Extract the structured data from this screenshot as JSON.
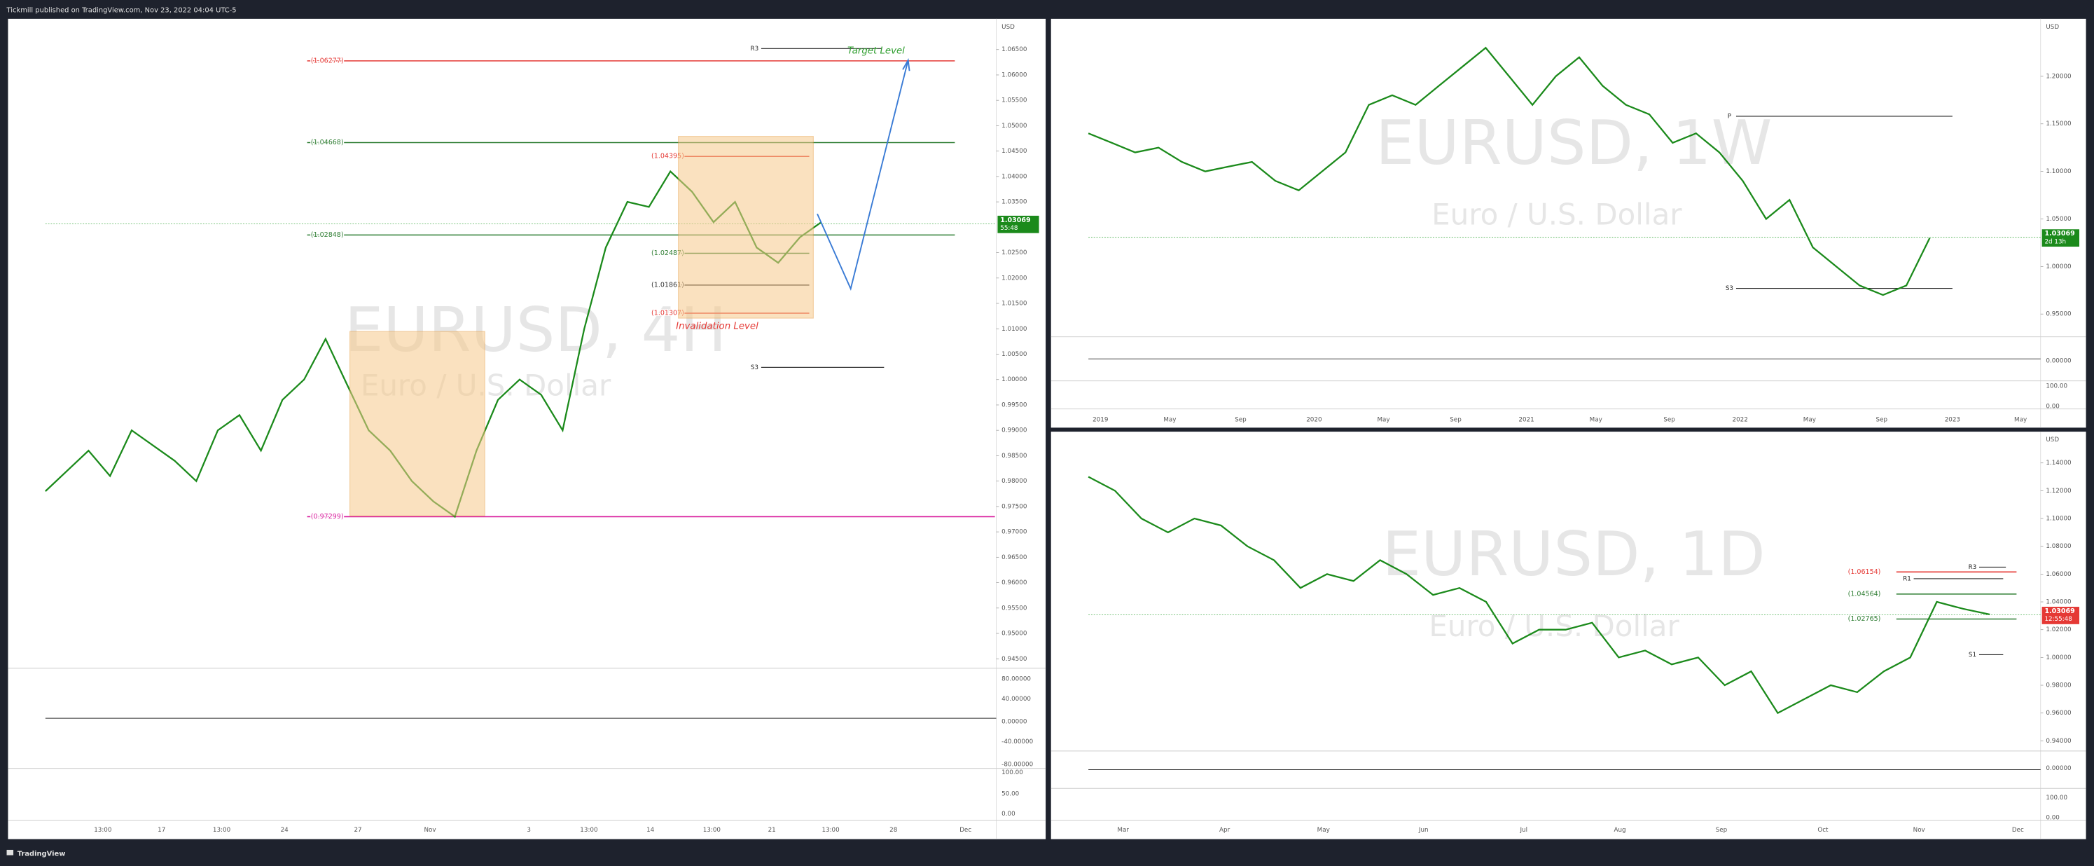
{
  "header": {
    "publisher": "Tickmill published on TradingView.com, Nov 23, 2022 04:04 UTC-5"
  },
  "footer": {
    "brand": "TradingView"
  },
  "panels": [
    {
      "type": "candlestick",
      "symbol": "EURUSD, 4H",
      "description": "Euro / U.S. Dollar",
      "unit": "USD",
      "ylim": [
        0.945,
        1.07
      ],
      "yticks": [
        {
          "value": 1.065,
          "label": "1.06500"
        },
        {
          "value": 1.06,
          "label": "1.06000"
        },
        {
          "value": 1.055,
          "label": "1.05500"
        },
        {
          "value": 1.05,
          "label": "1.05000"
        },
        {
          "value": 1.045,
          "label": "1.04500"
        },
        {
          "value": 1.04,
          "label": "1.04000"
        },
        {
          "value": 1.035,
          "label": "1.03500"
        },
        {
          "value": 1.025,
          "label": "1.02500"
        },
        {
          "value": 1.02,
          "label": "1.02000"
        },
        {
          "value": 1.015,
          "label": "1.01500"
        },
        {
          "value": 1.01,
          "label": "1.01000"
        },
        {
          "value": 1.005,
          "label": "1.00500"
        },
        {
          "value": 1.0,
          "label": "1.00000"
        },
        {
          "value": 0.995,
          "label": "0.99500"
        },
        {
          "value": 0.99,
          "label": "0.99000"
        },
        {
          "value": 0.985,
          "label": "0.98500"
        },
        {
          "value": 0.98,
          "label": "0.98000"
        },
        {
          "value": 0.975,
          "label": "0.97500"
        },
        {
          "value": 0.97,
          "label": "0.97000"
        },
        {
          "value": 0.965,
          "label": "0.96500"
        },
        {
          "value": 0.96,
          "label": "0.96000"
        },
        {
          "value": 0.955,
          "label": "0.95500"
        },
        {
          "value": 0.95,
          "label": "0.95000"
        },
        {
          "value": 0.945,
          "label": "0.94500"
        }
      ],
      "xticks": [
        "13:00",
        "17",
        "13:00",
        "24",
        "27",
        "Nov",
        "3",
        "13:00",
        "14",
        "13:00",
        "21",
        "13:00",
        "28",
        "Dec"
      ],
      "osc_labels": [
        "80.00000",
        "40.00000",
        "0.00000",
        "-40.00000",
        "-80.00000"
      ],
      "stoch_labels": [
        "100.00",
        "50.00",
        "0.00"
      ],
      "closes": [
        0.978,
        0.982,
        0.986,
        0.981,
        0.99,
        0.987,
        0.984,
        0.98,
        0.99,
        0.993,
        0.986,
        0.996,
        1.0,
        1.008,
        0.999,
        0.99,
        0.986,
        0.98,
        0.976,
        0.973,
        0.986,
        0.996,
        1.0,
        0.997,
        0.99,
        1.01,
        1.026,
        1.035,
        1.034,
        1.041,
        1.037,
        1.031,
        1.035,
        1.026,
        1.023,
        1.028,
        1.031
      ],
      "levels": [
        {
          "value": 1.06277,
          "label": "(1.06277)",
          "color": "#e53935"
        },
        {
          "value": 1.04668,
          "label": "(1.04668)",
          "color": "#2e7d32"
        },
        {
          "value": 1.02848,
          "label": "(1.02848)",
          "color": "#2e7d32"
        },
        {
          "value": 0.97299,
          "label": "(0.97299)",
          "color": "#d81b9c"
        },
        {
          "value": 1.04395,
          "label": "(1.04395)",
          "color": "#e53935"
        },
        {
          "value": 1.02487,
          "label": "(1.02487)",
          "color": "#2e7d32"
        },
        {
          "value": 1.01861,
          "label": "(1.01861)",
          "color": "#333333"
        },
        {
          "value": 1.01307,
          "label": "(1.01307)",
          "color": "#e53935"
        }
      ],
      "pivots": [
        {
          "label": "R3",
          "value": 1.0652
        },
        {
          "label": "S3",
          "value": 1.0024
        }
      ],
      "annotations": [
        "Target Level",
        "Invalidation Level"
      ],
      "price_tag": {
        "value": 1.03069,
        "label": "1.03069",
        "countdown": "55:48"
      }
    },
    {
      "type": "candlestick",
      "symbol": "EURUSD, 1W",
      "description": "Euro / U.S. Dollar",
      "unit": "USD",
      "ylim": [
        0.93,
        1.26
      ],
      "yticks": [
        {
          "value": 1.2,
          "label": "1.20000"
        },
        {
          "value": 1.15,
          "label": "1.15000"
        },
        {
          "value": 1.1,
          "label": "1.10000"
        },
        {
          "value": 1.05,
          "label": "1.05000"
        },
        {
          "value": 1.0,
          "label": "1.00000"
        },
        {
          "value": 0.95,
          "label": "0.95000"
        }
      ],
      "xticks": [
        "2019",
        "May",
        "Sep",
        "2020",
        "May",
        "Sep",
        "2021",
        "May",
        "Sep",
        "2022",
        "May",
        "Sep",
        "2023",
        "May"
      ],
      "osc_labels": [
        "0.00000"
      ],
      "stoch_labels": [
        "100.00",
        "0.00"
      ],
      "closes": [
        1.14,
        1.13,
        1.12,
        1.125,
        1.11,
        1.1,
        1.105,
        1.11,
        1.09,
        1.08,
        1.1,
        1.12,
        1.17,
        1.18,
        1.17,
        1.19,
        1.21,
        1.23,
        1.2,
        1.17,
        1.2,
        1.22,
        1.19,
        1.17,
        1.16,
        1.13,
        1.14,
        1.12,
        1.09,
        1.05,
        1.07,
        1.02,
        1.0,
        0.98,
        0.97,
        0.98,
        1.03
      ],
      "levels": [],
      "pivots": [
        {
          "label": "P",
          "value": 1.158
        },
        {
          "label": "S3",
          "value": 0.977
        }
      ],
      "annotations": [],
      "price_tag": {
        "value": 1.03069,
        "label": "1.03069",
        "countdown": "2d 13h"
      }
    },
    {
      "type": "candlestick",
      "symbol": "EURUSD, 1D",
      "description": "Euro / U.S. Dollar",
      "unit": "USD",
      "ylim": [
        0.935,
        1.155
      ],
      "yticks": [
        {
          "value": 1.14,
          "label": "1.14000"
        },
        {
          "value": 1.12,
          "label": "1.12000"
        },
        {
          "value": 1.1,
          "label": "1.10000"
        },
        {
          "value": 1.08,
          "label": "1.08000"
        },
        {
          "value": 1.06,
          "label": "1.06000"
        },
        {
          "value": 1.04,
          "label": "1.04000"
        },
        {
          "value": 1.02,
          "label": "1.02000"
        },
        {
          "value": 1.0,
          "label": "1.00000"
        },
        {
          "value": 0.98,
          "label": "0.98000"
        },
        {
          "value": 0.96,
          "label": "0.96000"
        },
        {
          "value": 0.94,
          "label": "0.94000"
        }
      ],
      "xticks": [
        "Mar",
        "Apr",
        "May",
        "Jun",
        "Jul",
        "Aug",
        "Sep",
        "Oct",
        "Nov",
        "Dec"
      ],
      "osc_labels": [
        "0.00000"
      ],
      "stoch_labels": [
        "100.00",
        "0.00"
      ],
      "closes": [
        1.13,
        1.12,
        1.1,
        1.09,
        1.1,
        1.095,
        1.08,
        1.07,
        1.05,
        1.06,
        1.055,
        1.07,
        1.06,
        1.045,
        1.05,
        1.04,
        1.01,
        1.02,
        1.02,
        1.025,
        1.0,
        1.005,
        0.995,
        1.0,
        0.98,
        0.99,
        0.96,
        0.97,
        0.98,
        0.975,
        0.99,
        1.0,
        1.04,
        1.035,
        1.031
      ],
      "levels": [
        {
          "value": 1.06154,
          "label": "(1.06154)",
          "color": "#e53935"
        },
        {
          "value": 1.04564,
          "label": "(1.04564)",
          "color": "#2e7d32"
        },
        {
          "value": 1.02765,
          "label": "(1.02765)",
          "color": "#2e7d32"
        }
      ],
      "pivots": [
        {
          "label": "R3",
          "value": 1.065
        },
        {
          "label": "R1",
          "value": 1.0567
        },
        {
          "label": "S1",
          "value": 1.002
        }
      ],
      "annotations": [],
      "price_tag": {
        "value": 1.03069,
        "label": "1.03069",
        "countdown": "12:55:48"
      }
    }
  ]
}
